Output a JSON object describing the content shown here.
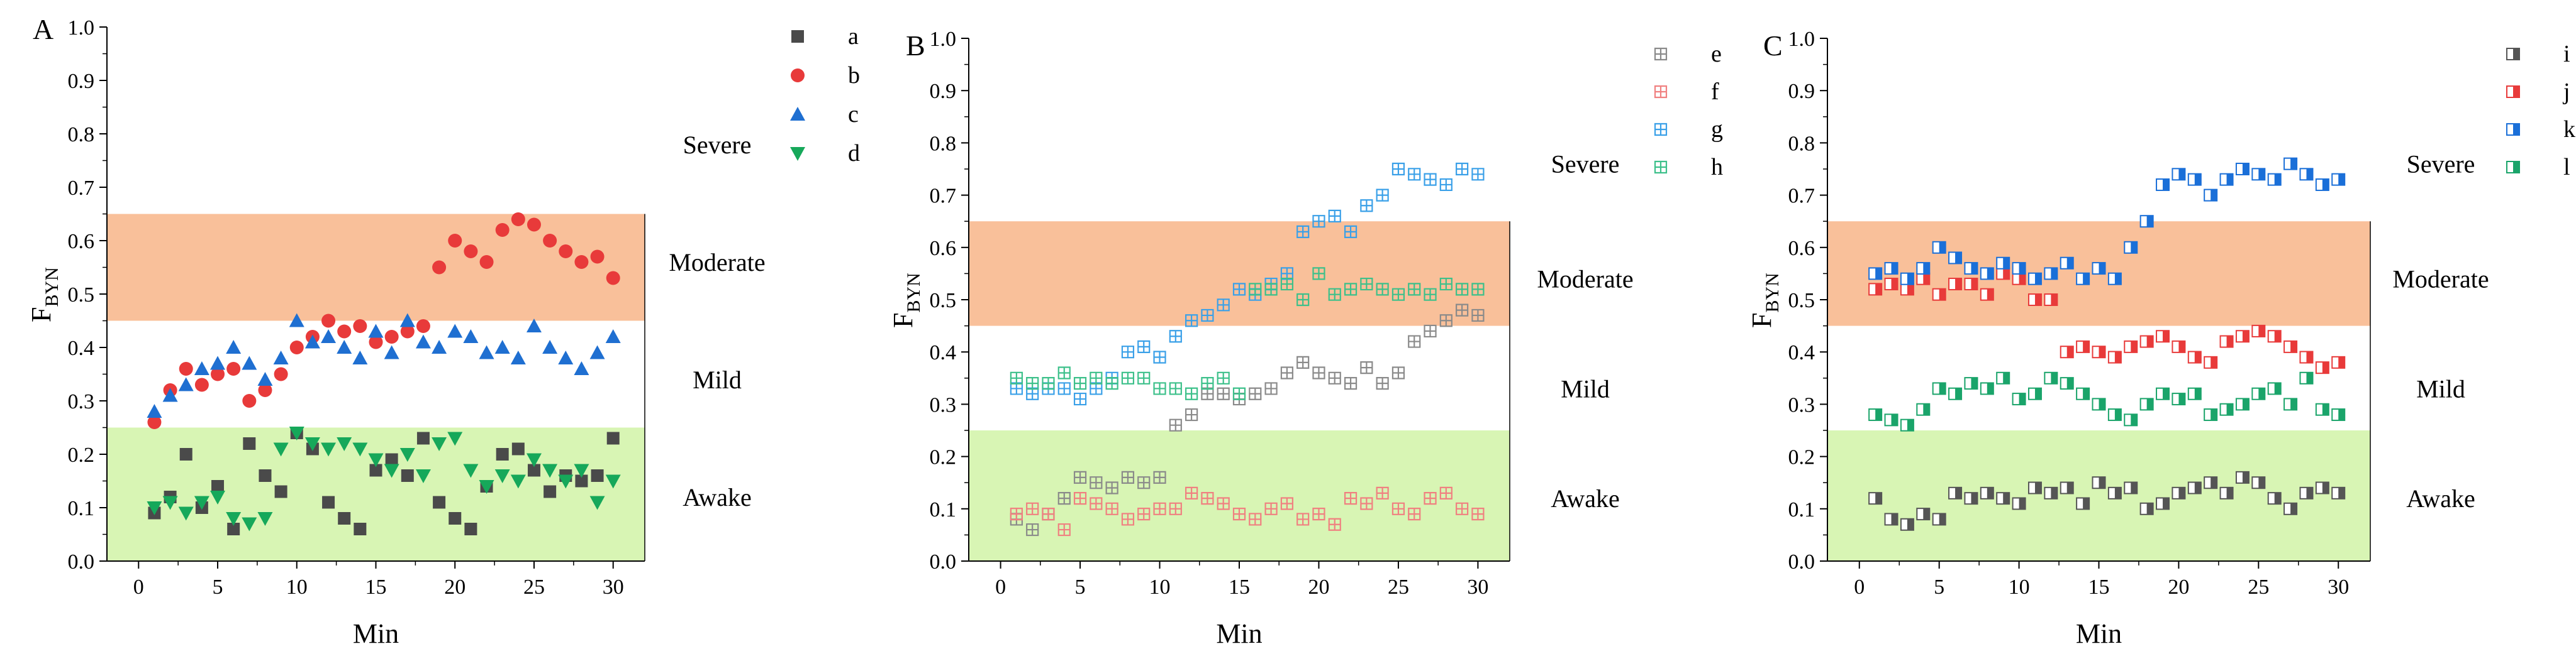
{
  "colors": {
    "awake_band": "#d8f5b4",
    "moderate_band": "#f9c09a",
    "a": "#4a4a4a",
    "b": "#e83a3a",
    "c": "#1f6fd1",
    "d": "#16a85a",
    "e": "#8a8a8a",
    "f": "#f08080",
    "g": "#3aa0e8",
    "h": "#3cc08a",
    "i": "#555555",
    "j": "#e83a3a",
    "k": "#1a6fd8",
    "l": "#1aa46a"
  },
  "chart_data": [
    {
      "type": "scatter",
      "panel_label": "A",
      "xlabel": "Min",
      "ylabel_main": "F",
      "ylabel_sub": "BYN",
      "xlim": [
        -2,
        32
      ],
      "ylim": [
        0,
        1.0
      ],
      "xticks": [
        "0",
        "5",
        "10",
        "15",
        "20",
        "25",
        "30"
      ],
      "yticks": [
        "0.0",
        "0.1",
        "0.2",
        "0.3",
        "0.4",
        "0.5",
        "0.6",
        "0.7",
        "0.8",
        "0.9",
        "1.0"
      ],
      "bands": [
        {
          "name": "Awake",
          "from": 0,
          "to": 0.25,
          "fill": "awake"
        },
        {
          "name": "Mild",
          "from": 0.25,
          "to": 0.45,
          "fill": "none"
        },
        {
          "name": "Moderate",
          "from": 0.45,
          "to": 0.65,
          "fill": "moderate"
        },
        {
          "name": "Severe",
          "from": 0.65,
          "to": 1.0,
          "fill": "none"
        }
      ],
      "band_labels": [
        "Severe",
        "Moderate",
        "Mild",
        "Awake"
      ],
      "band_label_values": [
        0.78,
        0.56,
        0.34,
        0.12
      ],
      "x": [
        1,
        2,
        3,
        4,
        5,
        6,
        7,
        8,
        9,
        10,
        11,
        12,
        13,
        14,
        15,
        16,
        17,
        18,
        19,
        20,
        21,
        22,
        23,
        24,
        25,
        26,
        27,
        28,
        29,
        30
      ],
      "series": [
        {
          "name": "a",
          "marker": "square",
          "values": [
            0.09,
            0.12,
            0.2,
            0.1,
            0.14,
            0.06,
            0.22,
            0.16,
            0.13,
            0.24,
            0.21,
            0.11,
            0.08,
            0.06,
            0.17,
            0.19,
            0.16,
            0.23,
            0.11,
            0.08,
            0.06,
            0.14,
            0.2,
            0.21,
            0.17,
            0.13,
            0.16,
            0.15,
            0.16,
            0.23
          ]
        },
        {
          "name": "b",
          "marker": "circle",
          "values": [
            0.26,
            0.32,
            0.36,
            0.33,
            0.35,
            0.36,
            0.3,
            0.32,
            0.35,
            0.4,
            0.42,
            0.45,
            0.43,
            0.44,
            0.41,
            0.42,
            0.43,
            0.44,
            0.55,
            0.6,
            0.58,
            0.56,
            0.62,
            0.64,
            0.63,
            0.6,
            0.58,
            0.56,
            0.57,
            0.53
          ]
        },
        {
          "name": "c",
          "marker": "triangle-up",
          "values": [
            0.28,
            0.31,
            0.33,
            0.36,
            0.37,
            0.4,
            0.37,
            0.34,
            0.38,
            0.45,
            0.41,
            0.42,
            0.4,
            0.38,
            0.43,
            0.39,
            0.45,
            0.41,
            0.4,
            0.43,
            0.42,
            0.39,
            0.4,
            0.38,
            0.44,
            0.4,
            0.38,
            0.36,
            0.39,
            0.42
          ]
        },
        {
          "name": "d",
          "marker": "triangle-down",
          "values": [
            0.1,
            0.11,
            0.09,
            0.11,
            0.12,
            0.08,
            0.07,
            0.08,
            0.21,
            0.24,
            0.22,
            0.21,
            0.22,
            0.21,
            0.19,
            0.17,
            0.2,
            0.16,
            0.22,
            0.23,
            0.17,
            0.14,
            0.16,
            0.15,
            0.19,
            0.17,
            0.15,
            0.17,
            0.11,
            0.15
          ]
        }
      ]
    },
    {
      "type": "scatter",
      "panel_label": "B",
      "xlabel": "Min",
      "ylabel_main": "F",
      "ylabel_sub": "BYN",
      "xlim": [
        -2,
        32
      ],
      "ylim": [
        0,
        1.0
      ],
      "xticks": [
        "0",
        "5",
        "10",
        "15",
        "20",
        "25",
        "30"
      ],
      "yticks": [
        "0.0",
        "0.1",
        "0.2",
        "0.3",
        "0.4",
        "0.5",
        "0.6",
        "0.7",
        "0.8",
        "0.9",
        "1.0"
      ],
      "bands": [
        {
          "name": "Awake",
          "from": 0,
          "to": 0.25,
          "fill": "awake"
        },
        {
          "name": "Mild",
          "from": 0.25,
          "to": 0.45,
          "fill": "none"
        },
        {
          "name": "Moderate",
          "from": 0.45,
          "to": 0.65,
          "fill": "moderate"
        },
        {
          "name": "Severe",
          "from": 0.65,
          "to": 1.0,
          "fill": "none"
        }
      ],
      "band_labels": [
        "Severe",
        "Moderate",
        "Mild",
        "Awake"
      ],
      "band_label_values": [
        0.76,
        0.54,
        0.33,
        0.12
      ],
      "x": [
        1,
        2,
        3,
        4,
        5,
        6,
        7,
        8,
        9,
        10,
        11,
        12,
        13,
        14,
        15,
        16,
        17,
        18,
        19,
        20,
        21,
        22,
        23,
        24,
        25,
        26,
        27,
        28,
        29,
        30
      ],
      "series": [
        {
          "name": "e",
          "marker": "grid-square",
          "values": [
            0.08,
            0.06,
            0.09,
            0.12,
            0.16,
            0.15,
            0.14,
            0.16,
            0.15,
            0.16,
            0.26,
            0.28,
            0.32,
            0.32,
            0.31,
            0.32,
            0.33,
            0.36,
            0.38,
            0.36,
            0.35,
            0.34,
            0.37,
            0.34,
            0.36,
            0.42,
            0.44,
            0.46,
            0.48,
            0.47
          ]
        },
        {
          "name": "f",
          "marker": "grid-square",
          "values": [
            0.09,
            0.1,
            0.09,
            0.06,
            0.12,
            0.11,
            0.1,
            0.08,
            0.09,
            0.1,
            0.1,
            0.13,
            0.12,
            0.11,
            0.09,
            0.08,
            0.1,
            0.11,
            0.08,
            0.09,
            0.07,
            0.12,
            0.11,
            0.13,
            0.1,
            0.09,
            0.12,
            0.13,
            0.1,
            0.09
          ]
        },
        {
          "name": "g",
          "marker": "grid-square",
          "values": [
            0.33,
            0.32,
            0.33,
            0.33,
            0.31,
            0.33,
            0.35,
            0.4,
            0.41,
            0.39,
            0.43,
            0.46,
            0.47,
            0.49,
            0.52,
            0.51,
            0.53,
            0.55,
            0.63,
            0.65,
            0.66,
            0.63,
            0.68,
            0.7,
            0.75,
            0.74,
            0.73,
            0.72,
            0.75,
            0.74
          ]
        },
        {
          "name": "h",
          "marker": "grid-square",
          "values": [
            0.35,
            0.34,
            0.34,
            0.36,
            0.34,
            0.35,
            0.34,
            0.35,
            0.35,
            0.33,
            0.33,
            0.32,
            0.34,
            0.35,
            0.32,
            0.52,
            0.52,
            0.53,
            0.5,
            0.55,
            0.51,
            0.52,
            0.53,
            0.52,
            0.51,
            0.52,
            0.51,
            0.53,
            0.52,
            0.52
          ]
        }
      ]
    },
    {
      "type": "scatter",
      "panel_label": "C",
      "xlabel": "Min",
      "ylabel_main": "F",
      "ylabel_sub": "BYN",
      "xlim": [
        -2,
        32
      ],
      "ylim": [
        0,
        1.0
      ],
      "xticks": [
        "0",
        "5",
        "10",
        "15",
        "20",
        "25",
        "30"
      ],
      "yticks": [
        "0.0",
        "0.1",
        "0.2",
        "0.3",
        "0.4",
        "0.5",
        "0.6",
        "0.7",
        "0.8",
        "0.9",
        "1.0"
      ],
      "bands": [
        {
          "name": "Awake",
          "from": 0,
          "to": 0.25,
          "fill": "awake"
        },
        {
          "name": "Mild",
          "from": 0.25,
          "to": 0.45,
          "fill": "none"
        },
        {
          "name": "Moderate",
          "from": 0.45,
          "to": 0.65,
          "fill": "moderate"
        },
        {
          "name": "Severe",
          "from": 0.65,
          "to": 1.0,
          "fill": "none"
        }
      ],
      "band_labels": [
        "Severe",
        "Moderate",
        "Mild",
        "Awake"
      ],
      "band_label_values": [
        0.76,
        0.54,
        0.33,
        0.12
      ],
      "x": [
        1,
        2,
        3,
        4,
        5,
        6,
        7,
        8,
        9,
        10,
        11,
        12,
        13,
        14,
        15,
        16,
        17,
        18,
        19,
        20,
        21,
        22,
        23,
        24,
        25,
        26,
        27,
        28,
        29,
        30
      ],
      "series": [
        {
          "name": "i",
          "marker": "half-square",
          "values": [
            0.12,
            0.08,
            0.07,
            0.09,
            0.08,
            0.13,
            0.12,
            0.13,
            0.12,
            0.11,
            0.14,
            0.13,
            0.14,
            0.11,
            0.15,
            0.13,
            0.14,
            0.1,
            0.11,
            0.13,
            0.14,
            0.15,
            0.13,
            0.16,
            0.15,
            0.12,
            0.1,
            0.13,
            0.14,
            0.13
          ]
        },
        {
          "name": "j",
          "marker": "half-square",
          "values": [
            0.52,
            0.53,
            0.52,
            0.54,
            0.51,
            0.53,
            0.53,
            0.51,
            0.55,
            0.54,
            0.5,
            0.5,
            0.4,
            0.41,
            0.4,
            0.39,
            0.41,
            0.42,
            0.43,
            0.41,
            0.39,
            0.38,
            0.42,
            0.43,
            0.44,
            0.43,
            0.41,
            0.39,
            0.37,
            0.38
          ]
        },
        {
          "name": "k",
          "marker": "half-square",
          "values": [
            0.55,
            0.56,
            0.54,
            0.56,
            0.6,
            0.58,
            0.56,
            0.55,
            0.57,
            0.56,
            0.54,
            0.55,
            0.57,
            0.54,
            0.56,
            0.54,
            0.6,
            0.65,
            0.72,
            0.74,
            0.73,
            0.7,
            0.73,
            0.75,
            0.74,
            0.73,
            0.76,
            0.74,
            0.72,
            0.73
          ]
        },
        {
          "name": "l",
          "marker": "half-square",
          "values": [
            0.28,
            0.27,
            0.26,
            0.29,
            0.33,
            0.32,
            0.34,
            0.33,
            0.35,
            0.31,
            0.32,
            0.35,
            0.34,
            0.32,
            0.3,
            0.28,
            0.27,
            0.3,
            0.32,
            0.31,
            0.32,
            0.28,
            0.29,
            0.3,
            0.32,
            0.33,
            0.3,
            0.35,
            0.29,
            0.28
          ]
        }
      ]
    }
  ]
}
